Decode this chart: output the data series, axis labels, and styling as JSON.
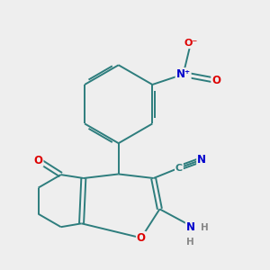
{
  "bg_color": "#eeeeee",
  "bond_color": "#2d7d7d",
  "atom_colors": {
    "O": "#dd0000",
    "N": "#0000cc",
    "C": "#2d7d7d",
    "H": "#888888"
  }
}
